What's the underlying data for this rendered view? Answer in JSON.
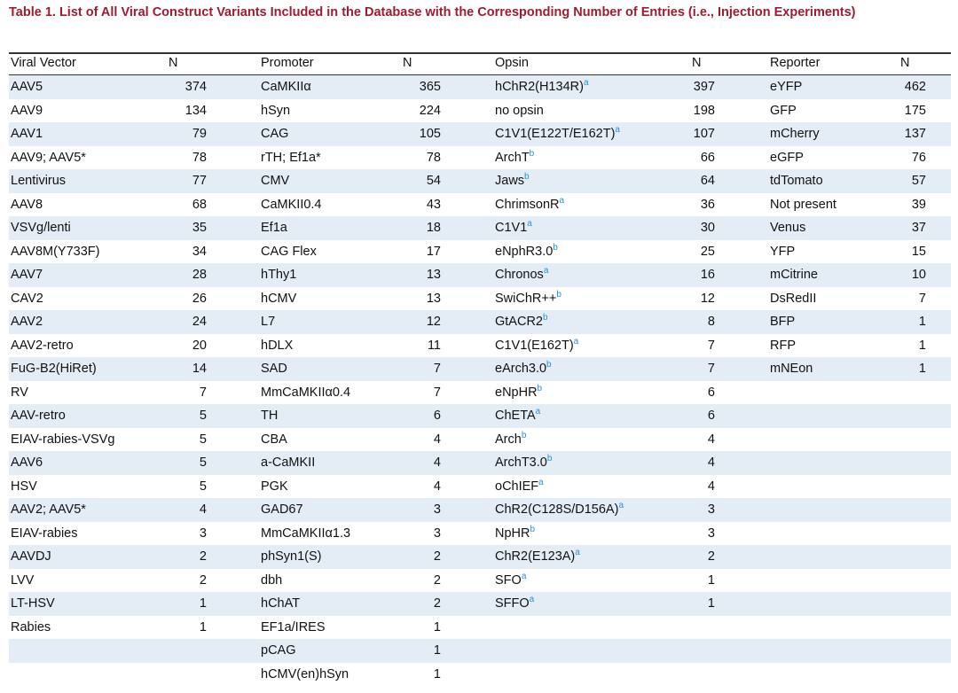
{
  "title": "Table 1. List of All Viral Construct Variants Included in the Database with the Corresponding Number of Entries (i.e., Injection Experiments)",
  "table": {
    "columns": [
      {
        "header": "Viral Vector",
        "n_header": "N",
        "entries": [
          {
            "name": "AAV5",
            "n": 374
          },
          {
            "name": "AAV9",
            "n": 134
          },
          {
            "name": "AAV1",
            "n": 79
          },
          {
            "name": "AAV9; AAV5*",
            "n": 78
          },
          {
            "name": "Lentivirus",
            "n": 77
          },
          {
            "name": "AAV8",
            "n": 68
          },
          {
            "name": "VSVg/lenti",
            "n": 35
          },
          {
            "name": "AAV8M(Y733F)",
            "n": 34
          },
          {
            "name": "AAV7",
            "n": 28
          },
          {
            "name": "CAV2",
            "n": 26
          },
          {
            "name": "AAV2",
            "n": 24
          },
          {
            "name": "AAV2-retro",
            "n": 20
          },
          {
            "name": "FuG-B2(HiRet)",
            "n": 14
          },
          {
            "name": "RV",
            "n": 7
          },
          {
            "name": "AAV-retro",
            "n": 5
          },
          {
            "name": "EIAV-rabies-VSVg",
            "n": 5
          },
          {
            "name": "AAV6",
            "n": 5
          },
          {
            "name": "HSV",
            "n": 5
          },
          {
            "name": "AAV2; AAV5*",
            "n": 4
          },
          {
            "name": "EIAV-rabies",
            "n": 3
          },
          {
            "name": "AAVDJ",
            "n": 2
          },
          {
            "name": "LVV",
            "n": 2
          },
          {
            "name": "LT-HSV",
            "n": 1
          },
          {
            "name": "Rabies",
            "n": 1
          }
        ]
      },
      {
        "header": "Promoter",
        "n_header": "N",
        "entries": [
          {
            "name": "CaMKIIα",
            "n": 365
          },
          {
            "name": "hSyn",
            "n": 224
          },
          {
            "name": "CAG",
            "n": 105
          },
          {
            "name": "rTH; Ef1a*",
            "n": 78
          },
          {
            "name": "CMV",
            "n": 54
          },
          {
            "name": "CaMKII0.4",
            "n": 43
          },
          {
            "name": "Ef1a",
            "n": 18
          },
          {
            "name": "CAG Flex",
            "n": 17
          },
          {
            "name": "hThy1",
            "n": 13
          },
          {
            "name": "hCMV",
            "n": 13
          },
          {
            "name": "L7",
            "n": 12
          },
          {
            "name": "hDLX",
            "n": 11
          },
          {
            "name": "SAD",
            "n": 7
          },
          {
            "name": "MmCaMKIIα0.4",
            "n": 7
          },
          {
            "name": "TH",
            "n": 6
          },
          {
            "name": "CBA",
            "n": 4
          },
          {
            "name": "a-CaMKII",
            "n": 4
          },
          {
            "name": "PGK",
            "n": 4
          },
          {
            "name": "GAD67",
            "n": 3
          },
          {
            "name": "MmCaMKIIα1.3",
            "n": 3
          },
          {
            "name": "phSyn1(S)",
            "n": 2
          },
          {
            "name": "dbh",
            "n": 2
          },
          {
            "name": "hChAT",
            "n": 2
          },
          {
            "name": "EF1a/IRES",
            "n": 1
          },
          {
            "name": "pCAG",
            "n": 1
          },
          {
            "name": "hCMV(en)hSyn",
            "n": 1
          }
        ]
      },
      {
        "header": "Opsin",
        "n_header": "N",
        "entries": [
          {
            "name": "hChR2(H134R)",
            "note": "a",
            "n": 397
          },
          {
            "name": "no opsin",
            "n": 198
          },
          {
            "name": "C1V1(E122T/E162T)",
            "note": "a",
            "n": 107
          },
          {
            "name": "ArchT",
            "note": "b",
            "n": 66
          },
          {
            "name": "Jaws",
            "note": "b",
            "n": 64
          },
          {
            "name": "ChrimsonR",
            "note": "a",
            "n": 36
          },
          {
            "name": "C1V1",
            "note": "a",
            "n": 30
          },
          {
            "name": "eNphR3.0",
            "note": "b",
            "n": 25
          },
          {
            "name": "Chronos",
            "note": "a",
            "n": 16
          },
          {
            "name": "SwiChR++",
            "note": "b",
            "n": 12
          },
          {
            "name": "GtACR2",
            "note": "b",
            "n": 8
          },
          {
            "name": "C1V1(E162T)",
            "note": "a",
            "n": 7
          },
          {
            "name": "eArch3.0",
            "note": "b",
            "n": 7
          },
          {
            "name": "eNpHR",
            "note": "b",
            "n": 6
          },
          {
            "name": "ChETA",
            "note": "a",
            "n": 6
          },
          {
            "name": "Arch",
            "note": "b",
            "n": 4
          },
          {
            "name": "ArchT3.0",
            "note": "b",
            "n": 4
          },
          {
            "name": "oChIEF",
            "note": "a",
            "n": 4
          },
          {
            "name": "ChR2(C128S/D156A)",
            "note": "a",
            "n": 3
          },
          {
            "name": "NpHR",
            "note": "b",
            "n": 3
          },
          {
            "name": "ChR2(E123A)",
            "note": "a",
            "n": 2
          },
          {
            "name": "SFO",
            "note": "a",
            "n": 1
          },
          {
            "name": "SFFO",
            "note": "a",
            "n": 1
          }
        ]
      },
      {
        "header": "Reporter",
        "n_header": "N",
        "entries": [
          {
            "name": "eYFP",
            "n": 462
          },
          {
            "name": "GFP",
            "n": 175
          },
          {
            "name": "mCherry",
            "n": 137
          },
          {
            "name": "eGFP",
            "n": 76
          },
          {
            "name": "tdTomato",
            "n": 57
          },
          {
            "name": "Not present",
            "n": 39
          },
          {
            "name": "Venus",
            "n": 37
          },
          {
            "name": "YFP",
            "n": 15
          },
          {
            "name": "mCitrine",
            "n": 10
          },
          {
            "name": "DsRedII",
            "n": 7
          },
          {
            "name": "BFP",
            "n": 1
          },
          {
            "name": "RFP",
            "n": 1
          },
          {
            "name": "mNEon",
            "n": 1
          }
        ]
      }
    ]
  }
}
